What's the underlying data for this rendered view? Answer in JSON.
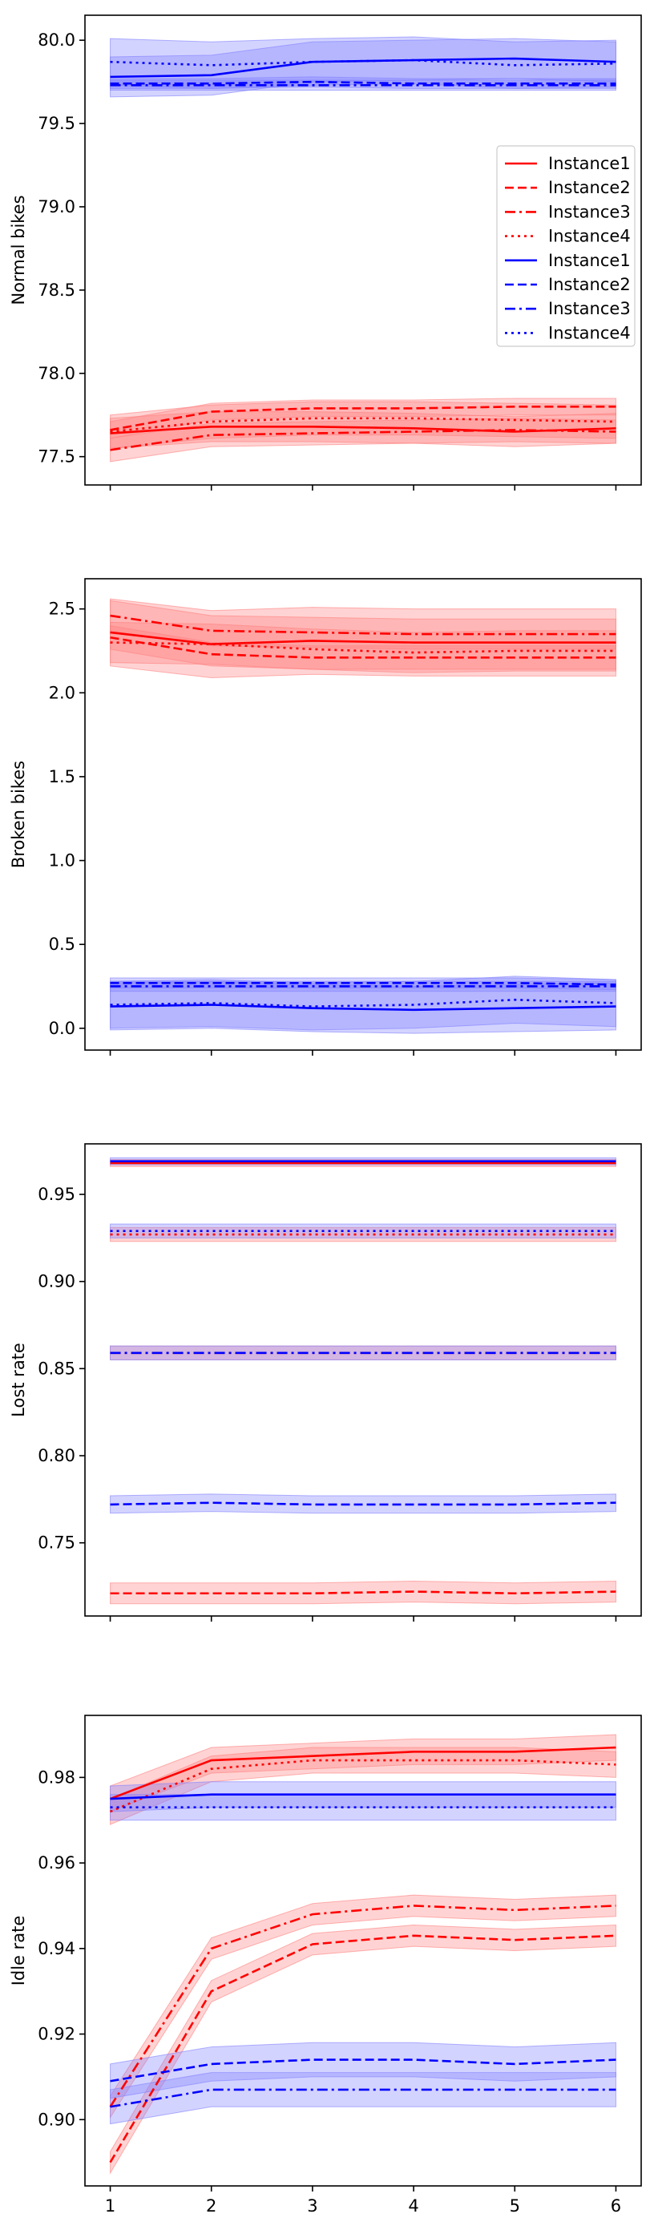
{
  "colors": {
    "red": "#ff0000",
    "blue": "#0000ff",
    "red_band": "#ff8080",
    "blue_band": "#8080ff"
  },
  "chart_data": [
    {
      "type": "line",
      "ylabel": "Normal bikes",
      "x": [
        1,
        2,
        3,
        4,
        5,
        6
      ],
      "ylim": [
        77.33,
        80.15
      ],
      "yticks": [
        77.5,
        78.0,
        78.5,
        79.0,
        79.5,
        80.0
      ],
      "yticklabels": [
        "77.5",
        "78.0",
        "78.5",
        "79.0",
        "79.5",
        "80.0"
      ],
      "show_xticklabels": false,
      "legend": "right",
      "series": [
        {
          "name": "Instance1",
          "color": "red",
          "dash": "solid",
          "values": [
            77.64,
            77.68,
            77.68,
            77.67,
            77.65,
            77.67
          ],
          "band": 0.09
        },
        {
          "name": "Instance2",
          "color": "red",
          "dash": "dashed",
          "values": [
            77.66,
            77.77,
            77.79,
            77.79,
            77.8,
            77.8
          ],
          "band": 0.05
        },
        {
          "name": "Instance3",
          "color": "red",
          "dash": "dashdot",
          "values": [
            77.54,
            77.63,
            77.64,
            77.65,
            77.66,
            77.65
          ],
          "band": 0.07
        },
        {
          "name": "Instance4",
          "color": "red",
          "dash": "dotted",
          "values": [
            77.65,
            77.71,
            77.73,
            77.73,
            77.72,
            77.71
          ],
          "band": 0.1
        },
        {
          "name": "Instance1",
          "color": "blue",
          "dash": "solid",
          "values": [
            79.78,
            79.79,
            79.87,
            79.88,
            79.89,
            79.87
          ],
          "band": 0.12
        },
        {
          "name": "Instance2",
          "color": "blue",
          "dash": "dashed",
          "values": [
            79.74,
            79.74,
            79.75,
            79.74,
            79.74,
            79.74
          ],
          "band": 0.03
        },
        {
          "name": "Instance3",
          "color": "blue",
          "dash": "dashdot",
          "values": [
            79.73,
            79.73,
            79.73,
            79.73,
            79.73,
            79.73
          ],
          "band": 0.03
        },
        {
          "name": "Instance4",
          "color": "blue",
          "dash": "dotted",
          "values": [
            79.87,
            79.85,
            79.87,
            79.88,
            79.85,
            79.86
          ],
          "band": 0.14
        }
      ]
    },
    {
      "type": "line",
      "ylabel": "Broken bikes",
      "x": [
        1,
        2,
        3,
        4,
        5,
        6
      ],
      "ylim": [
        -0.13,
        2.68
      ],
      "yticks": [
        0.0,
        0.5,
        1.0,
        1.5,
        2.0,
        2.5
      ],
      "yticklabels": [
        "0.0",
        "0.5",
        "1.0",
        "1.5",
        "2.0",
        "2.5"
      ],
      "show_xticklabels": false,
      "series": [
        {
          "name": "Instance1",
          "color": "red",
          "dash": "solid",
          "values": [
            2.36,
            2.29,
            2.31,
            2.3,
            2.3,
            2.3
          ],
          "band": 0.2
        },
        {
          "name": "Instance2",
          "color": "red",
          "dash": "dashed",
          "values": [
            2.33,
            2.23,
            2.21,
            2.21,
            2.21,
            2.21
          ],
          "band": 0.07
        },
        {
          "name": "Instance3",
          "color": "red",
          "dash": "dashdot",
          "values": [
            2.46,
            2.37,
            2.36,
            2.35,
            2.35,
            2.35
          ],
          "band": 0.09
        },
        {
          "name": "Instance4",
          "color": "red",
          "dash": "dotted",
          "values": [
            2.3,
            2.29,
            2.26,
            2.24,
            2.25,
            2.25
          ],
          "band": 0.12
        },
        {
          "name": "Instance1",
          "color": "blue",
          "dash": "solid",
          "values": [
            0.13,
            0.14,
            0.12,
            0.11,
            0.12,
            0.13
          ],
          "band": 0.14
        },
        {
          "name": "Instance2",
          "color": "blue",
          "dash": "dashed",
          "values": [
            0.27,
            0.27,
            0.27,
            0.27,
            0.27,
            0.26
          ],
          "band": 0.03
        },
        {
          "name": "Instance3",
          "color": "blue",
          "dash": "dashdot",
          "values": [
            0.25,
            0.25,
            0.25,
            0.25,
            0.25,
            0.25
          ],
          "band": 0.03
        },
        {
          "name": "Instance4",
          "color": "blue",
          "dash": "dotted",
          "values": [
            0.14,
            0.15,
            0.13,
            0.14,
            0.17,
            0.15
          ],
          "band": 0.14
        }
      ]
    },
    {
      "type": "line",
      "ylabel": "Lost rate",
      "x": [
        1,
        2,
        3,
        4,
        5,
        6
      ],
      "ylim": [
        0.708,
        0.979
      ],
      "yticks": [
        0.75,
        0.8,
        0.85,
        0.9,
        0.95
      ],
      "yticklabels": [
        "0.75",
        "0.80",
        "0.85",
        "0.90",
        "0.95"
      ],
      "show_xticklabels": false,
      "series": [
        {
          "name": "Instance1",
          "color": "red",
          "dash": "solid",
          "values": [
            0.968,
            0.968,
            0.968,
            0.968,
            0.968,
            0.968
          ],
          "band": 0.002
        },
        {
          "name": "Instance2",
          "color": "red",
          "dash": "dashed",
          "values": [
            0.721,
            0.721,
            0.721,
            0.722,
            0.721,
            0.722
          ],
          "band": 0.006
        },
        {
          "name": "Instance3",
          "color": "red",
          "dash": "dashdot",
          "values": [
            0.859,
            0.859,
            0.859,
            0.859,
            0.859,
            0.859
          ],
          "band": 0.004
        },
        {
          "name": "Instance4",
          "color": "red",
          "dash": "dotted",
          "values": [
            0.927,
            0.927,
            0.927,
            0.927,
            0.927,
            0.927
          ],
          "band": 0.004
        },
        {
          "name": "Instance1",
          "color": "blue",
          "dash": "solid",
          "values": [
            0.969,
            0.969,
            0.969,
            0.969,
            0.969,
            0.969
          ],
          "band": 0.002
        },
        {
          "name": "Instance2",
          "color": "blue",
          "dash": "dashed",
          "values": [
            0.772,
            0.773,
            0.772,
            0.772,
            0.772,
            0.773
          ],
          "band": 0.005
        },
        {
          "name": "Instance3",
          "color": "blue",
          "dash": "dashdot",
          "values": [
            0.859,
            0.859,
            0.859,
            0.859,
            0.859,
            0.859
          ],
          "band": 0.004
        },
        {
          "name": "Instance4",
          "color": "blue",
          "dash": "dotted",
          "values": [
            0.929,
            0.929,
            0.929,
            0.929,
            0.929,
            0.929
          ],
          "band": 0.004
        }
      ]
    },
    {
      "type": "line",
      "ylabel": "Idle rate",
      "x": [
        1,
        2,
        3,
        4,
        5,
        6
      ],
      "ylim": [
        0.8845,
        0.9945
      ],
      "yticks": [
        0.9,
        0.92,
        0.94,
        0.96,
        0.98
      ],
      "yticklabels": [
        "0.90",
        "0.92",
        "0.94",
        "0.96",
        "0.98"
      ],
      "xticklabels": [
        "1",
        "2",
        "3",
        "4",
        "5",
        "6"
      ],
      "show_xticklabels": true,
      "series": [
        {
          "name": "Instance1",
          "color": "red",
          "dash": "solid",
          "values": [
            0.975,
            0.984,
            0.985,
            0.986,
            0.986,
            0.987
          ],
          "band": 0.003
        },
        {
          "name": "Instance2",
          "color": "red",
          "dash": "dashed",
          "values": [
            0.89,
            0.93,
            0.941,
            0.943,
            0.942,
            0.943
          ],
          "band": 0.0025
        },
        {
          "name": "Instance3",
          "color": "red",
          "dash": "dashdot",
          "values": [
            0.903,
            0.94,
            0.948,
            0.95,
            0.949,
            0.95
          ],
          "band": 0.0025
        },
        {
          "name": "Instance4",
          "color": "red",
          "dash": "dotted",
          "values": [
            0.972,
            0.982,
            0.984,
            0.984,
            0.984,
            0.983
          ],
          "band": 0.003
        },
        {
          "name": "Instance1",
          "color": "blue",
          "dash": "solid",
          "values": [
            0.975,
            0.976,
            0.976,
            0.976,
            0.976,
            0.976
          ],
          "band": 0.003
        },
        {
          "name": "Instance2",
          "color": "blue",
          "dash": "dashed",
          "values": [
            0.909,
            0.913,
            0.914,
            0.914,
            0.913,
            0.914
          ],
          "band": 0.004
        },
        {
          "name": "Instance3",
          "color": "blue",
          "dash": "dashdot",
          "values": [
            0.903,
            0.907,
            0.907,
            0.907,
            0.907,
            0.907
          ],
          "band": 0.004
        },
        {
          "name": "Instance4",
          "color": "blue",
          "dash": "dotted",
          "values": [
            0.973,
            0.973,
            0.973,
            0.973,
            0.973,
            0.973
          ],
          "band": 0.003
        }
      ]
    }
  ]
}
